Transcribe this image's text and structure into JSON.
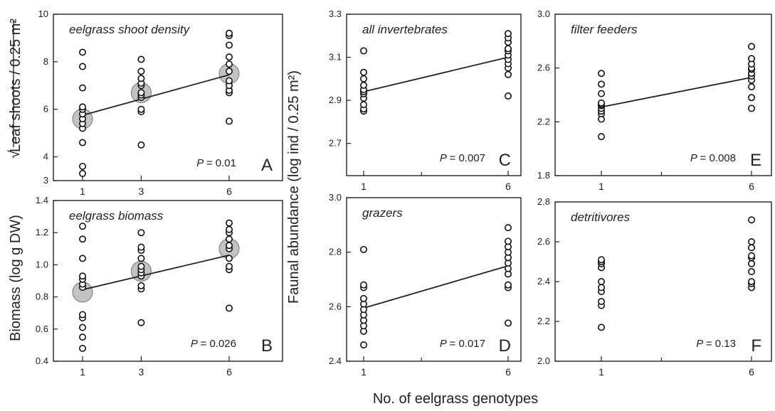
{
  "figure": {
    "left_ylabel_top": "Leaf shoots / 0.25 m²",
    "left_ylabel_top_prefix": "√",
    "left_ylabel_bottom": "Biomass (log g DW)",
    "right_ylabel": "Faunal abundance (log ind / 0.25 m²)",
    "xlabel": "No. of eelgrass genotypes"
  },
  "chart_data": [
    {
      "id": "A",
      "letter": "A",
      "type": "scatter",
      "title": "eelgrass shoot density",
      "p_label": "P",
      "p_value": "= 0.01",
      "ylim": [
        3,
        10
      ],
      "yticks": [
        3,
        4,
        6,
        8,
        10
      ],
      "categories": [
        1,
        3,
        6
      ],
      "major_xticks": [
        1,
        3,
        6
      ],
      "points": [
        {
          "x": 1,
          "y": [
            3.3,
            3.6,
            4.6,
            5.2,
            5.4,
            5.6,
            5.8,
            6.0,
            6.1,
            6.9,
            7.8,
            8.4
          ]
        },
        {
          "x": 3,
          "y": [
            4.5,
            5.9,
            6.0,
            6.5,
            6.6,
            6.7,
            7.0,
            7.1,
            7.3,
            7.6,
            8.1
          ]
        },
        {
          "x": 6,
          "y": [
            5.5,
            6.7,
            6.8,
            7.0,
            7.2,
            7.6,
            7.9,
            8.2,
            8.7,
            9.1,
            9.2
          ]
        }
      ],
      "means": [
        {
          "x": 1,
          "y": 5.6
        },
        {
          "x": 3,
          "y": 6.7
        },
        {
          "x": 6,
          "y": 7.5
        }
      ],
      "fit": [
        [
          1,
          5.75
        ],
        [
          6,
          7.45
        ]
      ]
    },
    {
      "id": "B",
      "letter": "B",
      "type": "scatter",
      "title": "eelgrass biomass",
      "p_label": "P",
      "p_value": "= 0.026",
      "ylim": [
        0.4,
        1.4
      ],
      "yticks": [
        0.4,
        0.6,
        0.8,
        1.0,
        1.2,
        1.4
      ],
      "categories": [
        1,
        3,
        6
      ],
      "major_xticks": [
        1,
        3,
        6
      ],
      "points": [
        {
          "x": 1,
          "y": [
            0.48,
            0.55,
            0.61,
            0.67,
            0.69,
            0.86,
            0.88,
            0.91,
            0.93,
            1.04,
            1.16,
            1.24
          ]
        },
        {
          "x": 3,
          "y": [
            0.64,
            0.85,
            0.87,
            0.93,
            0.95,
            0.97,
            0.99,
            1.04,
            1.09,
            1.11,
            1.2
          ]
        },
        {
          "x": 6,
          "y": [
            0.73,
            0.97,
            0.99,
            1.04,
            1.1,
            1.12,
            1.16,
            1.2,
            1.22,
            1.26
          ]
        }
      ],
      "means": [
        {
          "x": 1,
          "y": 0.83
        },
        {
          "x": 3,
          "y": 0.96
        },
        {
          "x": 6,
          "y": 1.1
        }
      ],
      "fit": [
        [
          1,
          0.845
        ],
        [
          6,
          1.06
        ]
      ]
    },
    {
      "id": "C",
      "letter": "C",
      "type": "scatter",
      "title": "all invertebrates",
      "p_label": "P",
      "p_value": "= 0.007",
      "ylim": [
        2.55,
        3.3
      ],
      "yticks": [
        2.7,
        2.9,
        3.1,
        3.3
      ],
      "categories": [
        1,
        6
      ],
      "major_xticks": [
        1,
        6
      ],
      "minor_xticks": [
        3
      ],
      "points": [
        {
          "x": 1,
          "y": [
            2.85,
            2.86,
            2.88,
            2.91,
            2.93,
            2.94,
            2.95,
            2.97,
            3.0,
            3.03,
            3.13
          ]
        },
        {
          "x": 6,
          "y": [
            2.92,
            3.02,
            3.05,
            3.07,
            3.09,
            3.11,
            3.13,
            3.14,
            3.17,
            3.19,
            3.21
          ]
        }
      ],
      "fit": [
        [
          1,
          2.94
        ],
        [
          6,
          3.1
        ]
      ]
    },
    {
      "id": "D",
      "letter": "D",
      "type": "scatter",
      "title": "grazers",
      "p_label": "P",
      "p_value": "= 0.017",
      "ylim": [
        2.4,
        3.0
      ],
      "yticks": [
        2.4,
        2.6,
        2.8,
        3.0
      ],
      "categories": [
        1,
        6
      ],
      "major_xticks": [
        1,
        6
      ],
      "minor_xticks": [
        3
      ],
      "points": [
        {
          "x": 1,
          "y": [
            2.46,
            2.51,
            2.53,
            2.55,
            2.57,
            2.59,
            2.61,
            2.63,
            2.67,
            2.68,
            2.81
          ]
        },
        {
          "x": 6,
          "y": [
            2.54,
            2.67,
            2.68,
            2.72,
            2.74,
            2.76,
            2.78,
            2.8,
            2.82,
            2.84,
            2.89
          ]
        }
      ],
      "fit": [
        [
          1,
          2.595
        ],
        [
          6,
          2.75
        ]
      ]
    },
    {
      "id": "E",
      "letter": "E",
      "type": "scatter",
      "title": "filter feeders",
      "p_label": "P",
      "p_value": "= 0.008",
      "ylim": [
        1.8,
        3.0
      ],
      "yticks": [
        1.8,
        2.2,
        2.6,
        3.0
      ],
      "categories": [
        1,
        6
      ],
      "major_xticks": [
        1,
        6
      ],
      "minor_xticks": [
        3
      ],
      "points": [
        {
          "x": 1,
          "y": [
            2.09,
            2.22,
            2.26,
            2.28,
            2.3,
            2.32,
            2.33,
            2.34,
            2.41,
            2.48,
            2.56
          ]
        },
        {
          "x": 6,
          "y": [
            2.3,
            2.38,
            2.46,
            2.51,
            2.54,
            2.56,
            2.59,
            2.6,
            2.63,
            2.67,
            2.76
          ]
        }
      ],
      "fit": [
        [
          1,
          2.31
        ],
        [
          6,
          2.53
        ]
      ]
    },
    {
      "id": "F",
      "letter": "F",
      "type": "scatter",
      "title": "detritivores",
      "p_label": "P",
      "p_value": "= 0.13",
      "ylim": [
        2.0,
        2.8
      ],
      "yticks": [
        2.0,
        2.2,
        2.4,
        2.6,
        2.8
      ],
      "categories": [
        1,
        6
      ],
      "major_xticks": [
        1,
        6
      ],
      "minor_xticks": [
        3
      ],
      "points": [
        {
          "x": 1,
          "y": [
            2.17,
            2.28,
            2.3,
            2.35,
            2.37,
            2.4,
            2.47,
            2.49,
            2.5,
            2.51
          ]
        },
        {
          "x": 6,
          "y": [
            2.37,
            2.39,
            2.4,
            2.45,
            2.49,
            2.52,
            2.53,
            2.57,
            2.6,
            2.71
          ]
        }
      ]
    }
  ]
}
